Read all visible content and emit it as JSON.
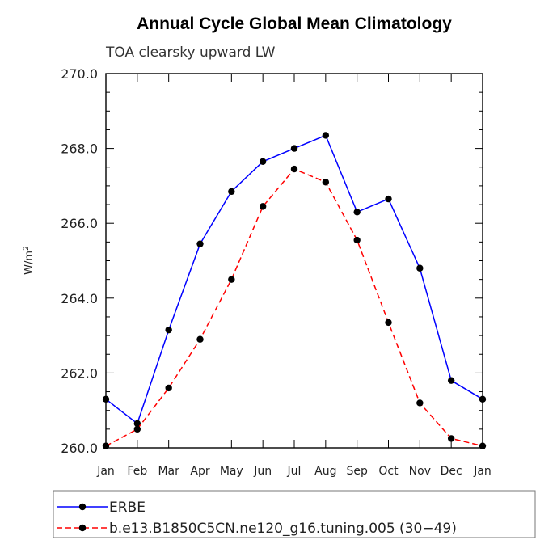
{
  "chart_data": {
    "type": "line",
    "title": "Annual Cycle Global Mean Climatology",
    "subtitle": "TOA clearsky upward LW",
    "ylabel": "W/m",
    "ylabel_sup": "2",
    "xlabel": "",
    "ylim": [
      260.0,
      270.0
    ],
    "yticks": [
      "260.0",
      "262.0",
      "264.0",
      "266.0",
      "268.0",
      "270.0"
    ],
    "categories": [
      "Jan",
      "Feb",
      "Mar",
      "Apr",
      "May",
      "Jun",
      "Jul",
      "Aug",
      "Sep",
      "Oct",
      "Nov",
      "Dec",
      "Jan"
    ],
    "series": [
      {
        "name": "ERBE",
        "color": "#0000ff",
        "dash": "solid",
        "values": [
          261.3,
          260.65,
          263.15,
          265.45,
          266.85,
          267.65,
          268.0,
          268.35,
          266.3,
          266.65,
          264.8,
          261.8,
          261.3
        ]
      },
      {
        "name": "b.e13.B1850C5CN.ne120_g16.tuning.005 (30−49)",
        "color": "#ff0000",
        "dash": "dashed",
        "values": [
          260.05,
          260.5,
          261.6,
          262.9,
          264.5,
          266.45,
          267.45,
          267.1,
          265.55,
          263.35,
          261.2,
          260.25,
          260.05
        ]
      }
    ],
    "marker_color": "#000000",
    "grid": false,
    "legend_position": "bottom"
  }
}
